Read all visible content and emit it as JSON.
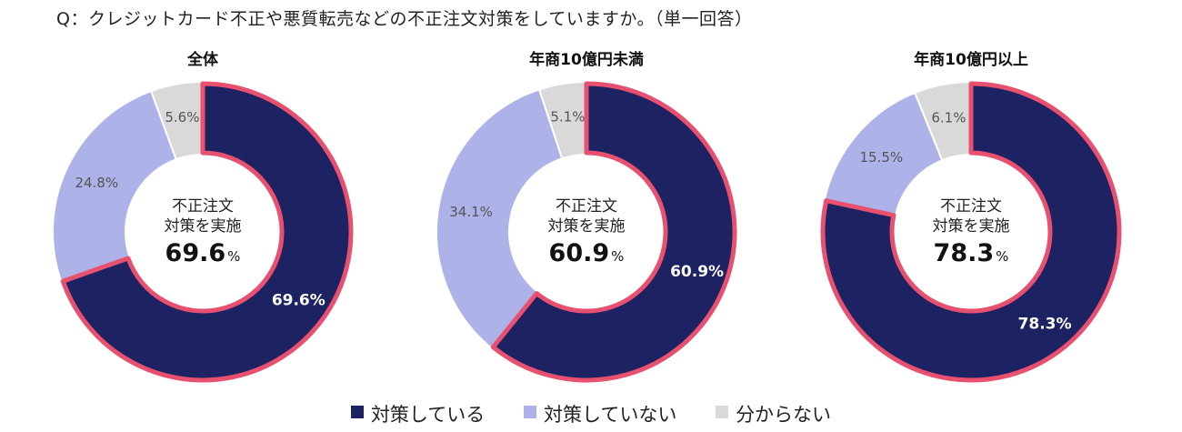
{
  "question": "Q：クレジットカード不正や悪質転売などの不正注文対策をしていますか。（単一回答）",
  "colors": {
    "implemented": "#1d2263",
    "not_implemented": "#adb3e8",
    "unknown": "#d9d9d9",
    "highlight": "#e8506f"
  },
  "center_label": {
    "line1": "不正注文",
    "line2": "対策を実施",
    "unit": "%"
  },
  "legend": [
    {
      "label": "対策している",
      "color": "#1d2263"
    },
    {
      "label": "対策していない",
      "color": "#adb3e8"
    },
    {
      "label": "分からない",
      "color": "#d9d9d9"
    }
  ],
  "chart_data": [
    {
      "type": "pie",
      "title": "全体",
      "categories": [
        "対策している",
        "対策していない",
        "分からない"
      ],
      "values": [
        69.6,
        24.8,
        5.6
      ],
      "labels": [
        "69.6%",
        "24.8%",
        "5.6%"
      ],
      "center_value": "69.6"
    },
    {
      "type": "pie",
      "title": "年商10億円未満",
      "categories": [
        "対策している",
        "対策していない",
        "分からない"
      ],
      "values": [
        60.9,
        34.1,
        5.1
      ],
      "labels": [
        "60.9%",
        "34.1%",
        "5.1%"
      ],
      "center_value": "60.9"
    },
    {
      "type": "pie",
      "title": "年商10億円以上",
      "categories": [
        "対策している",
        "対策していない",
        "分からない"
      ],
      "values": [
        78.3,
        15.5,
        6.1
      ],
      "labels": [
        "78.3%",
        "15.5%",
        "6.1%"
      ],
      "center_value": "78.3"
    }
  ]
}
